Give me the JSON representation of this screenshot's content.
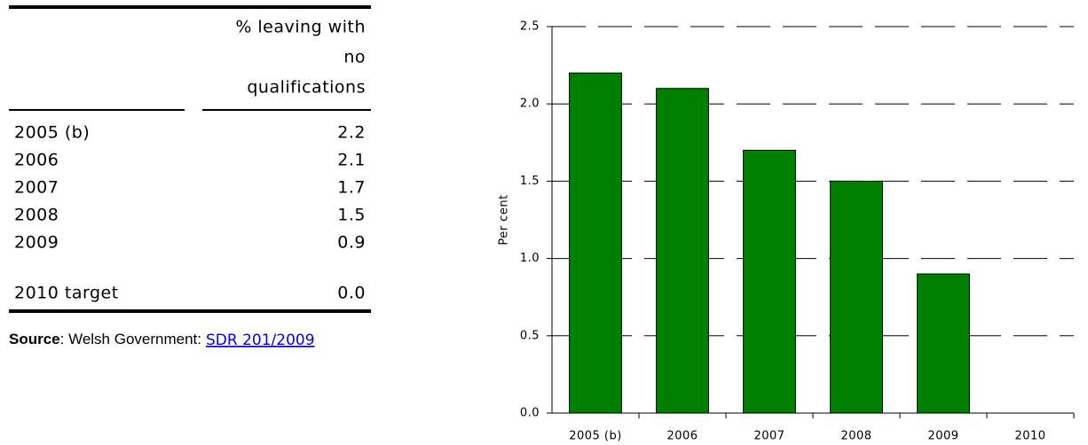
{
  "table": {
    "header": [
      "% leaving with",
      "no",
      "qualifications"
    ],
    "rows": [
      [
        "2005 (b)",
        "2.2"
      ],
      [
        "2006",
        "2.1"
      ],
      [
        "2007",
        "1.7"
      ],
      [
        "2008",
        "1.5"
      ],
      [
        "2009",
        "0.9"
      ]
    ],
    "target": [
      "2010 target",
      "0.0"
    ]
  },
  "source": {
    "label": "Source",
    "text": ": Welsh Government:",
    "link": "SDR 201/2009"
  },
  "chart_data": {
    "type": "bar",
    "y_label": "Per cent",
    "categories": [
      "2005 (b)",
      "2006",
      "2007",
      "2008",
      "2009",
      "2010"
    ],
    "values": [
      2.2,
      2.1,
      1.7,
      1.5,
      0.9,
      0
    ],
    "color": "#008000",
    "ylim": [
      0,
      2.5
    ],
    "yticks": [
      {
        "value": 0,
        "label": "0.0"
      },
      0.5,
      {
        "value": 1,
        "label": "1.0"
      },
      1.5,
      {
        "value": 2,
        "label": "2.0"
      },
      2.5
    ],
    "grid": true
  }
}
